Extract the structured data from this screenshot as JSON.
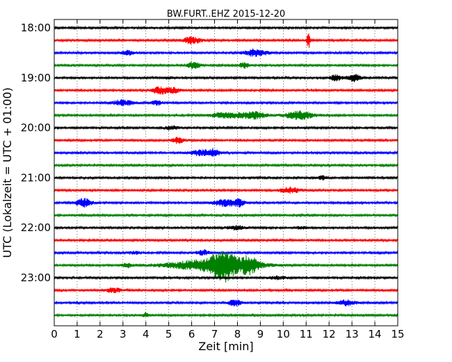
{
  "chart_data": {
    "type": "line",
    "title": "BW.FURT..EHZ 2015-12-20",
    "xlabel": "Zeit  [min]",
    "ylabel": "UTC (Lokalzeit = UTC + 01:00)",
    "xlim": [
      0,
      15
    ],
    "x_ticks": [
      "0",
      "1",
      "2",
      "3",
      "4",
      "5",
      "6",
      "7",
      "8",
      "9",
      "10",
      "11",
      "12",
      "13",
      "14",
      "15"
    ],
    "y_tick_labels": [
      "18:00",
      "19:00",
      "20:00",
      "21:00",
      "22:00",
      "23:00"
    ],
    "grid": true,
    "trace_interval_min": 15,
    "colors": [
      "#000000",
      "#ff0000",
      "#0000ff",
      "#008000"
    ],
    "traces": [
      {
        "start": "18:00",
        "color": "#000000",
        "events": []
      },
      {
        "start": "18:15",
        "color": "#ff0000",
        "events": [
          {
            "t": 6.0,
            "amp": 5,
            "dur": 0.6
          },
          {
            "t": 11.1,
            "amp": 13,
            "dur": 0.1
          }
        ]
      },
      {
        "start": "18:30",
        "color": "#0000ff",
        "events": [
          {
            "t": 3.2,
            "amp": 3,
            "dur": 0.4
          },
          {
            "t": 8.8,
            "amp": 5,
            "dur": 0.8
          }
        ]
      },
      {
        "start": "18:45",
        "color": "#008000",
        "events": [
          {
            "t": 6.1,
            "amp": 5,
            "dur": 0.4
          },
          {
            "t": 8.3,
            "amp": 4,
            "dur": 0.3
          }
        ]
      },
      {
        "start": "19:00",
        "color": "#000000",
        "events": [
          {
            "t": 12.3,
            "amp": 4,
            "dur": 0.4
          },
          {
            "t": 13.1,
            "amp": 5,
            "dur": 0.4
          },
          {
            "t": 5.0,
            "amp": 2,
            "dur": 0.3
          }
        ]
      },
      {
        "start": "19:15",
        "color": "#ff0000",
        "events": [
          {
            "t": 4.6,
            "amp": 5,
            "dur": 0.5
          },
          {
            "t": 5.2,
            "amp": 4,
            "dur": 0.4
          }
        ]
      },
      {
        "start": "19:30",
        "color": "#0000ff",
        "events": [
          {
            "t": 3.0,
            "amp": 4,
            "dur": 0.7
          },
          {
            "t": 4.5,
            "amp": 3,
            "dur": 0.4
          }
        ]
      },
      {
        "start": "19:45",
        "color": "#008000",
        "events": [
          {
            "t": 7.5,
            "amp": 4,
            "dur": 1.0
          },
          {
            "t": 8.7,
            "amp": 5,
            "dur": 0.8
          },
          {
            "t": 10.7,
            "amp": 6,
            "dur": 0.9
          }
        ]
      },
      {
        "start": "20:00",
        "color": "#000000",
        "events": [
          {
            "t": 5.1,
            "amp": 3,
            "dur": 0.4
          }
        ]
      },
      {
        "start": "20:15",
        "color": "#ff0000",
        "events": [
          {
            "t": 5.4,
            "amp": 4,
            "dur": 0.4
          }
        ]
      },
      {
        "start": "20:30",
        "color": "#0000ff",
        "events": [
          {
            "t": 6.5,
            "amp": 4,
            "dur": 0.9
          },
          {
            "t": 7.0,
            "amp": 4,
            "dur": 0.3
          }
        ]
      },
      {
        "start": "20:45",
        "color": "#008000",
        "events": []
      },
      {
        "start": "21:00",
        "color": "#000000",
        "events": [
          {
            "t": 11.7,
            "amp": 3,
            "dur": 0.3
          }
        ]
      },
      {
        "start": "21:15",
        "color": "#ff0000",
        "events": [
          {
            "t": 10.3,
            "amp": 4,
            "dur": 0.7
          }
        ]
      },
      {
        "start": "21:30",
        "color": "#0000ff",
        "events": [
          {
            "t": 1.3,
            "amp": 6,
            "dur": 0.5
          },
          {
            "t": 7.5,
            "amp": 5,
            "dur": 0.8
          },
          {
            "t": 8.1,
            "amp": 4,
            "dur": 0.3
          }
        ]
      },
      {
        "start": "21:45",
        "color": "#008000",
        "events": []
      },
      {
        "start": "22:00",
        "color": "#000000",
        "events": [
          {
            "t": 7.9,
            "amp": 3,
            "dur": 0.6
          },
          {
            "t": 10.8,
            "amp": 2,
            "dur": 0.3
          }
        ]
      },
      {
        "start": "22:15",
        "color": "#ff0000",
        "events": []
      },
      {
        "start": "22:30",
        "color": "#0000ff",
        "events": [
          {
            "t": 6.5,
            "amp": 4,
            "dur": 0.4
          },
          {
            "t": 3.5,
            "amp": 2,
            "dur": 0.4
          }
        ]
      },
      {
        "start": "22:45",
        "color": "#008000",
        "events": [
          {
            "t": 7.0,
            "amp": 9,
            "dur": 2.8
          },
          {
            "t": 7.4,
            "amp": 16,
            "dur": 0.7
          },
          {
            "t": 8.5,
            "amp": 9,
            "dur": 0.6
          },
          {
            "t": 3.2,
            "amp": 3,
            "dur": 0.3
          }
        ]
      },
      {
        "start": "23:00",
        "color": "#000000",
        "events": [
          {
            "t": 9.8,
            "amp": 2,
            "dur": 0.6
          }
        ]
      },
      {
        "start": "23:15",
        "color": "#ff0000",
        "events": [
          {
            "t": 2.6,
            "amp": 3,
            "dur": 0.5
          }
        ]
      },
      {
        "start": "23:30",
        "color": "#0000ff",
        "events": [
          {
            "t": 7.9,
            "amp": 5,
            "dur": 0.4
          },
          {
            "t": 12.8,
            "amp": 4,
            "dur": 0.6
          }
        ]
      },
      {
        "start": "23:45",
        "color": "#008000",
        "events": [
          {
            "t": 4.0,
            "amp": 3,
            "dur": 0.2
          }
        ]
      }
    ]
  }
}
